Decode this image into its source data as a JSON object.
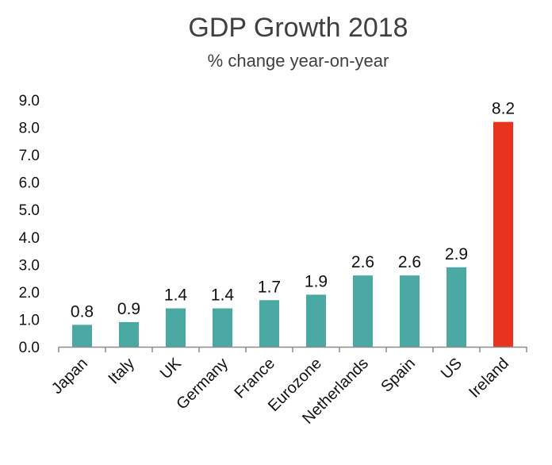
{
  "chart_data": {
    "type": "bar",
    "title": "GDP Growth 2018",
    "subtitle": "% change year-on-year",
    "xlabel": "",
    "ylabel": "",
    "categories": [
      "Japan",
      "Italy",
      "UK",
      "Germany",
      "France",
      "Eurozone",
      "Netherlands",
      "Spain",
      "US",
      "Ireland"
    ],
    "values": [
      0.8,
      0.9,
      1.4,
      1.4,
      1.7,
      1.9,
      2.6,
      2.6,
      2.9,
      8.2
    ],
    "data_labels": [
      "0.8",
      "0.9",
      "1.4",
      "1.4",
      "1.7",
      "1.9",
      "2.6",
      "2.6",
      "2.9",
      "8.2"
    ],
    "yticks": [
      "0.0",
      "1.0",
      "2.0",
      "3.0",
      "4.0",
      "5.0",
      "6.0",
      "7.0",
      "8.0",
      "9.0"
    ],
    "ylim": [
      0,
      9
    ],
    "grid": false,
    "legend": "none",
    "bar_color": "#4aaaa3",
    "highlight_color": "#e8331f",
    "highlight_category": "Ireland"
  }
}
